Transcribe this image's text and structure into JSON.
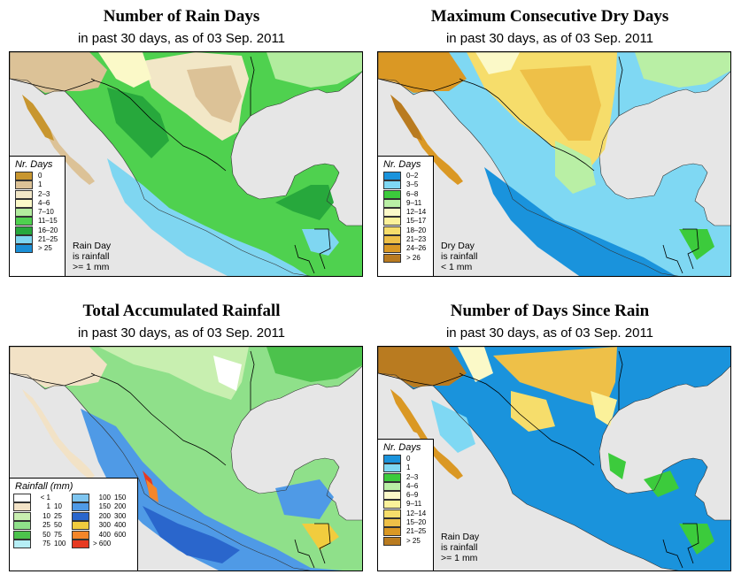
{
  "panels": {
    "rain_days": {
      "title": "Number of Rain Days",
      "subtitle": "in past 30 days, as of  03 Sep. 2011",
      "legend_title": "Nr. Days",
      "legend": [
        {
          "label": "0",
          "color": "#c8962f"
        },
        {
          "label": "1",
          "color": "#dcc297"
        },
        {
          "label": "2–3",
          "color": "#f2e7c7"
        },
        {
          "label": "4–6",
          "color": "#fbf9c8"
        },
        {
          "label": "7–10",
          "color": "#b2ec9e"
        },
        {
          "label": "11–15",
          "color": "#4fd14f"
        },
        {
          "label": "16–20",
          "color": "#27a83c"
        },
        {
          "label": "21–25",
          "color": "#7fd6f1"
        },
        {
          "label": "> 25",
          "color": "#1b8fd6"
        }
      ],
      "note": [
        "Rain Day",
        "is rainfall",
        ">= 1 mm"
      ]
    },
    "dry_days": {
      "title": "Maximum Consecutive Dry Days",
      "subtitle": "in past 30 days, as of  03 Sep. 2011",
      "legend_title": "Nr. Days",
      "legend": [
        {
          "label": "0–2",
          "color": "#1a93dc"
        },
        {
          "label": "3–5",
          "color": "#7fd8f3"
        },
        {
          "label": "6–8",
          "color": "#3ccb3c"
        },
        {
          "label": "9–11",
          "color": "#b9efa5"
        },
        {
          "label": "12–14",
          "color": "#fbf9c8"
        },
        {
          "label": "15–17",
          "color": "#fbf19a"
        },
        {
          "label": "18–20",
          "color": "#f6dd6b"
        },
        {
          "label": "21–23",
          "color": "#eec048"
        },
        {
          "label": "24–26",
          "color": "#da9824"
        },
        {
          "label": "> 26",
          "color": "#b97b20"
        }
      ],
      "note": [
        "Dry Day",
        "is rainfall",
        "< 1 mm"
      ]
    },
    "total_rainfall": {
      "title": "Total Accumulated Rainfall",
      "subtitle": "in past 30 days, as of  03 Sep. 2011",
      "legend_title": "Rainfall (mm)",
      "legend_rows": [
        {
          "c1": "#ffffff",
          "a1": "< 1",
          "b1": "",
          "c2": "#7ec5f0",
          "a2": "100",
          "b2": "150"
        },
        {
          "c1": "#f2e2c6",
          "a1": "1",
          "b1": "10",
          "c2": "#4f9ae6",
          "a2": "150",
          "b2": "200"
        },
        {
          "c1": "#c8efb0",
          "a1": "10",
          "b1": "25",
          "c2": "#2a66cc",
          "a2": "200",
          "b2": "300"
        },
        {
          "c1": "#8fe08a",
          "a1": "25",
          "b1": "50",
          "c2": "#f1cc3e",
          "a2": "300",
          "b2": "400"
        },
        {
          "c1": "#4cc24c",
          "a1": "50",
          "b1": "75",
          "c2": "#f4862a",
          "a2": "400",
          "b2": "600"
        },
        {
          "c1": "#b6eef5",
          "a1": "75",
          "b1": "100",
          "c2": "#e63a22",
          "a2": "> 600",
          "b2": ""
        }
      ]
    },
    "days_since_rain": {
      "title": "Number of Days Since Rain",
      "subtitle": "in past 30 days, as of  03 Sep. 2011",
      "legend_title": "Nr. Days",
      "legend": [
        {
          "label": "0",
          "color": "#1a93dc"
        },
        {
          "label": "1",
          "color": "#7fd8f3"
        },
        {
          "label": "2–3",
          "color": "#3ccb3c"
        },
        {
          "label": "4–6",
          "color": "#b9efa5"
        },
        {
          "label": "6–9",
          "color": "#fbf9c8"
        },
        {
          "label": "9–11",
          "color": "#fbf19a"
        },
        {
          "label": "12–14",
          "color": "#f6dd6b"
        },
        {
          "label": "15–20",
          "color": "#eec048"
        },
        {
          "label": "21–25",
          "color": "#da9824"
        },
        {
          "label": "> 25",
          "color": "#b97b20"
        }
      ],
      "note": [
        "Rain Day",
        "is rainfall",
        ">= 1 mm"
      ]
    }
  },
  "colors": {
    "ocean": "#e6e6e6",
    "border": "#000000"
  }
}
